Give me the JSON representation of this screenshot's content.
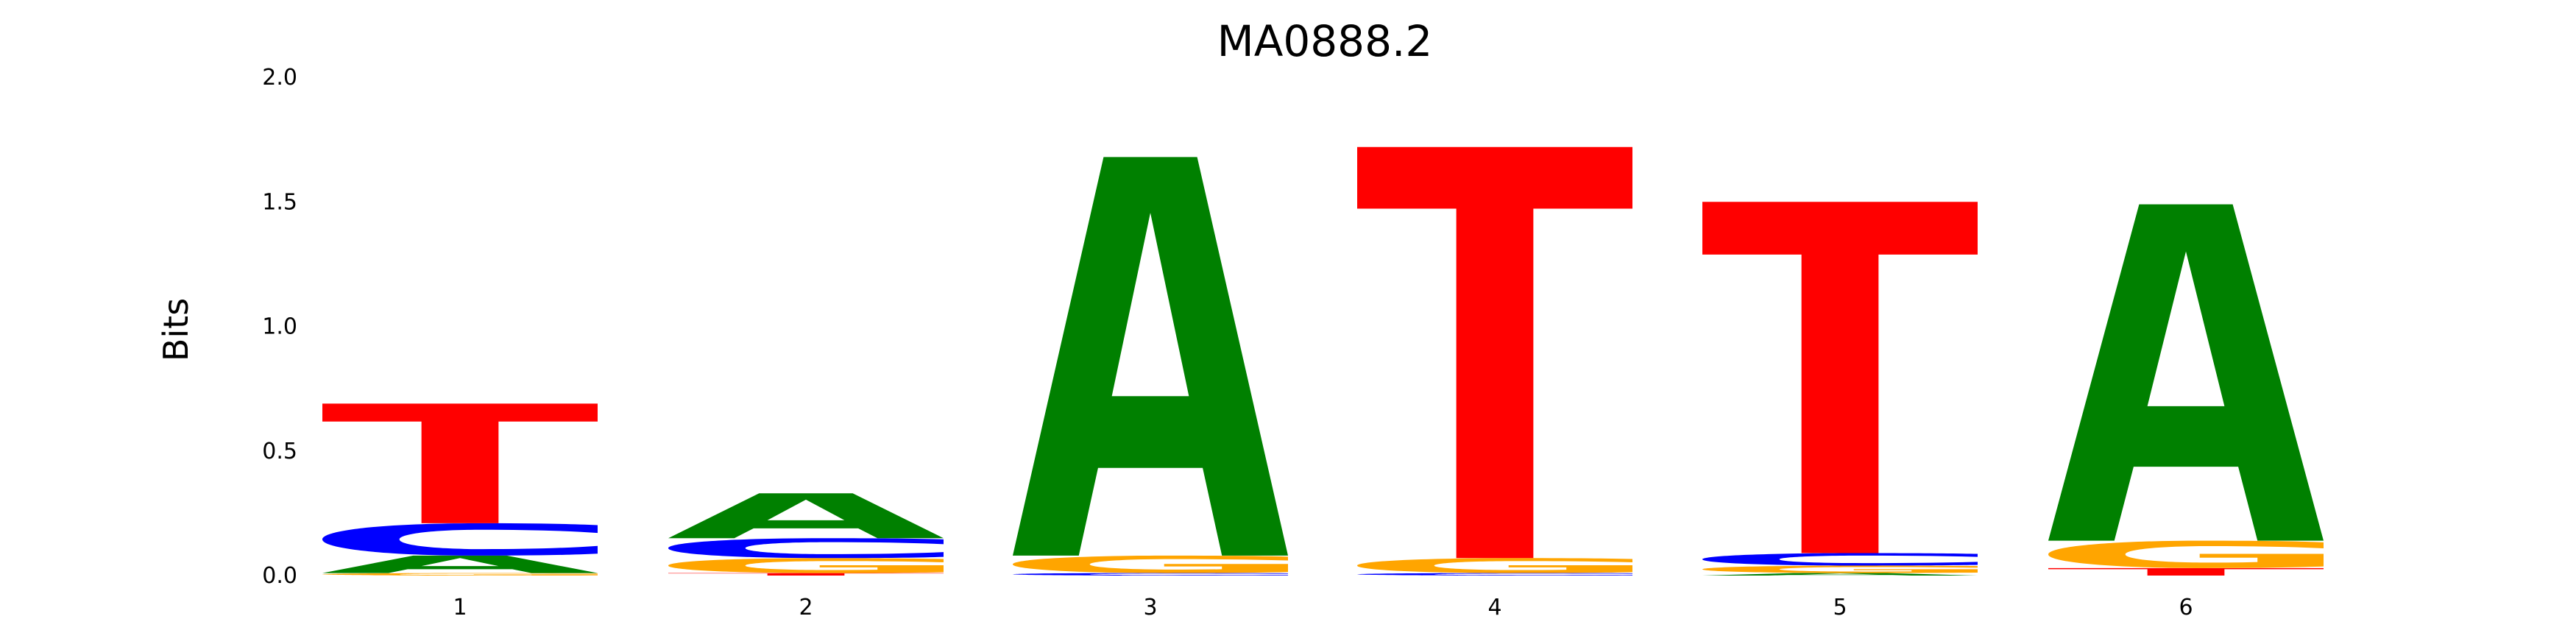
{
  "chart_data": {
    "type": "sequence-logo",
    "title": "MA0888.2",
    "ylabel": "Bits",
    "xlabel": "",
    "ylim": [
      0,
      2.0
    ],
    "yticks": [
      "0.0",
      "0.5",
      "1.0",
      "1.5",
      "2.0"
    ],
    "positions": [
      "1",
      "2",
      "3",
      "4",
      "5",
      "6"
    ],
    "colors": {
      "A": "#008000",
      "C": "#0000ff",
      "G": "#ffa500",
      "T": "#ff0000"
    },
    "stacks": [
      [
        {
          "base": "G",
          "bits": 0.01
        },
        {
          "base": "A",
          "bits": 0.07
        },
        {
          "base": "C",
          "bits": 0.13
        },
        {
          "base": "T",
          "bits": 0.48
        }
      ],
      [
        {
          "base": "T",
          "bits": 0.01
        },
        {
          "base": "G",
          "bits": 0.06
        },
        {
          "base": "C",
          "bits": 0.08
        },
        {
          "base": "A",
          "bits": 0.18
        }
      ],
      [
        {
          "base": "C",
          "bits": 0.01
        },
        {
          "base": "G",
          "bits": 0.07
        },
        {
          "base": "A",
          "bits": 1.6
        }
      ],
      [
        {
          "base": "C",
          "bits": 0.01
        },
        {
          "base": "G",
          "bits": 0.06
        },
        {
          "base": "T",
          "bits": 1.65
        }
      ],
      [
        {
          "base": "A",
          "bits": 0.01
        },
        {
          "base": "G",
          "bits": 0.03
        },
        {
          "base": "C",
          "bits": 0.05
        },
        {
          "base": "T",
          "bits": 1.41
        }
      ],
      [
        {
          "base": "T",
          "bits": 0.03
        },
        {
          "base": "G",
          "bits": 0.11
        },
        {
          "base": "A",
          "bits": 1.35
        }
      ]
    ]
  }
}
